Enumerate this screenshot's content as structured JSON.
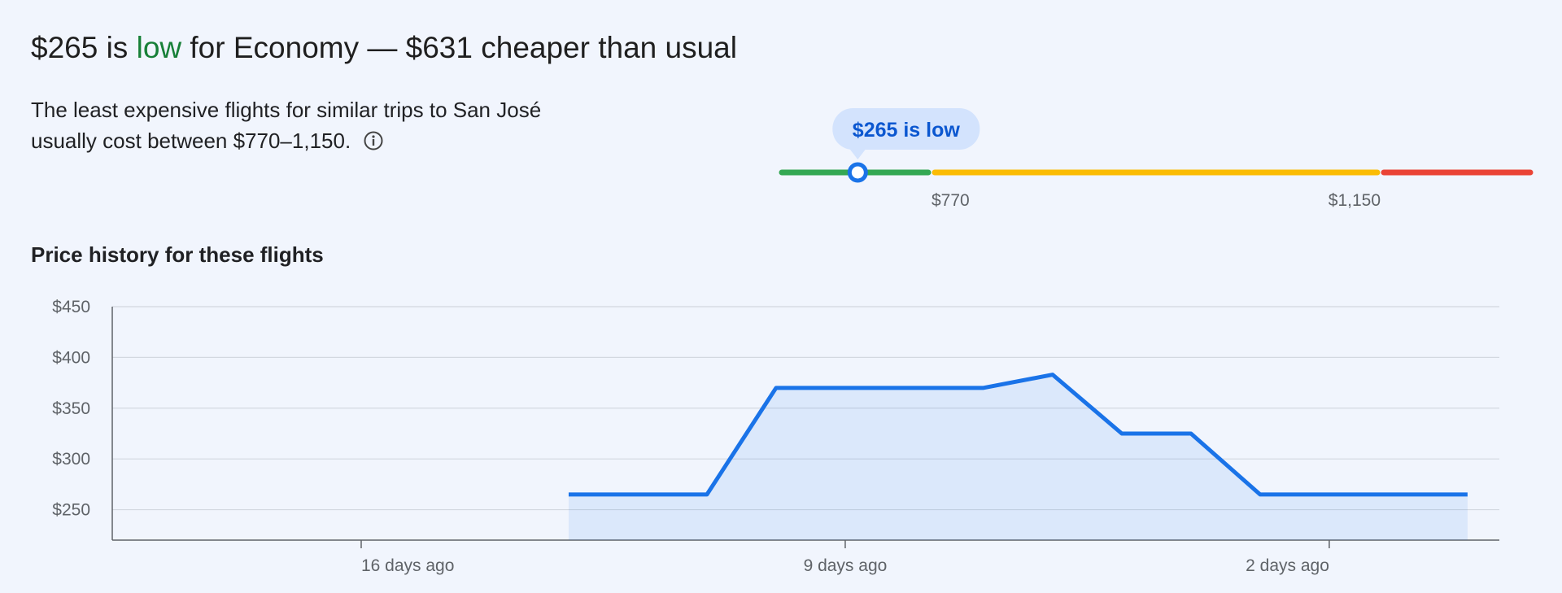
{
  "header": {
    "headline": [
      "$265 is ",
      "low",
      " for Economy — $631 cheaper than usual"
    ],
    "description": [
      "The least expensive flights for similar trips to San José",
      "usually cost between $770–1,150."
    ]
  },
  "range": {
    "tooltip": "$265 is low",
    "price": 265,
    "low": 770,
    "high": 1150,
    "low_label": "$770",
    "high_label": "$1,150"
  },
  "chart_data": {
    "type": "line",
    "title": "Price history for these flights",
    "x": [
      -13,
      -12,
      -11,
      -10,
      -9,
      -8,
      -7,
      -6,
      -5,
      -4,
      -3,
      -2,
      -1,
      0
    ],
    "values": [
      265,
      265,
      265,
      370,
      370,
      370,
      370,
      383,
      325,
      325,
      265,
      265,
      265,
      265
    ],
    "color": "#1a73e8",
    "xlim": [
      -19.6,
      0.46
    ],
    "xticks": [
      {
        "value": -16,
        "label": "16 days ago"
      },
      {
        "value": -9,
        "label": "9 days ago"
      },
      {
        "value": -2,
        "label": "2 days ago"
      }
    ],
    "ylim": [
      220,
      450
    ],
    "yticks": [
      {
        "value": 250,
        "label": "$250"
      },
      {
        "value": 300,
        "label": "$300"
      },
      {
        "value": 350,
        "label": "$350"
      },
      {
        "value": 400,
        "label": "$400"
      },
      {
        "value": 450,
        "label": "$450"
      }
    ],
    "grid": true
  }
}
